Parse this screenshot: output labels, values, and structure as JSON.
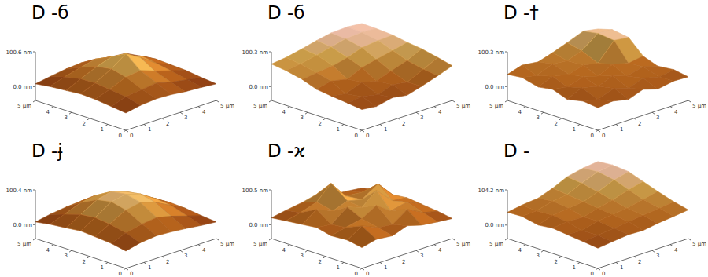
{
  "chart_data": [
    {
      "type": "surface",
      "title": "D -б",
      "x": [
        0,
        0.8,
        1.7,
        2.5,
        3.3,
        4.2,
        5
      ],
      "y": [
        0,
        0.8,
        1.7,
        2.5,
        3.3,
        4.2,
        5
      ],
      "xlim": [
        0,
        5
      ],
      "ylim": [
        0,
        5
      ],
      "zlim": [
        -40,
        100.6
      ],
      "xticks": [
        0,
        1,
        2,
        3,
        4,
        {
          "value": 5,
          "label": "5 µm"
        }
      ],
      "yticks": [
        0,
        1,
        2,
        3,
        4,
        {
          "value": 5,
          "label": "5 µm"
        }
      ],
      "zticks": [
        {
          "value": 0,
          "label": "0.0 nm"
        },
        {
          "value": 100.6,
          "label": "100.6 nm"
        }
      ],
      "z": [
        [
          10,
          18,
          22,
          20,
          15,
          12,
          8
        ],
        [
          15,
          30,
          35,
          40,
          28,
          20,
          12
        ],
        [
          20,
          35,
          55,
          60,
          45,
          30,
          18
        ],
        [
          22,
          40,
          65,
          95,
          70,
          38,
          20
        ],
        [
          18,
          38,
          58,
          72,
          60,
          45,
          22
        ],
        [
          14,
          28,
          40,
          50,
          42,
          30,
          16
        ],
        [
          8,
          15,
          22,
          25,
          20,
          14,
          10
        ]
      ]
    },
    {
      "type": "surface",
      "title": "D -б",
      "x": [
        0,
        0.8,
        1.7,
        2.5,
        3.3,
        4.2,
        5
      ],
      "y": [
        0,
        0.8,
        1.7,
        2.5,
        3.3,
        4.2,
        5
      ],
      "xlim": [
        0,
        5
      ],
      "ylim": [
        0,
        5
      ],
      "zlim": [
        -40,
        100.3
      ],
      "xticks": [
        0,
        1,
        2,
        3,
        4,
        {
          "value": 5,
          "label": "5 µm"
        }
      ],
      "yticks": [
        0,
        1,
        2,
        3,
        4,
        {
          "value": 5,
          "label": "5 µm"
        }
      ],
      "zticks": [
        {
          "value": 0,
          "label": "0.0 nm"
        },
        {
          "value": 100.3,
          "label": "100.3 nm"
        }
      ],
      "z": [
        [
          20,
          15,
          25,
          18,
          30,
          45,
          60
        ],
        [
          25,
          30,
          20,
          35,
          28,
          50,
          70
        ],
        [
          30,
          22,
          40,
          30,
          45,
          60,
          80
        ],
        [
          35,
          45,
          35,
          55,
          65,
          75,
          85
        ],
        [
          50,
          55,
          60,
          70,
          85,
          90,
          92
        ],
        [
          60,
          65,
          75,
          85,
          95,
          98,
          95
        ],
        [
          65,
          70,
          80,
          90,
          98,
          100,
          96
        ]
      ]
    },
    {
      "type": "surface",
      "title": "D -†",
      "x": [
        0,
        0.8,
        1.7,
        2.5,
        3.3,
        4.2,
        5
      ],
      "y": [
        0,
        0.8,
        1.7,
        2.5,
        3.3,
        4.2,
        5
      ],
      "xlim": [
        0,
        5
      ],
      "ylim": [
        0,
        5
      ],
      "zlim": [
        -40,
        100.3
      ],
      "xticks": [
        0,
        1,
        2,
        3,
        4,
        {
          "value": 5,
          "label": "5 µm"
        }
      ],
      "yticks": [
        0,
        1,
        2,
        3,
        4,
        {
          "value": 5,
          "label": "5 µm"
        }
      ],
      "zticks": [
        {
          "value": 0,
          "label": "0.0 nm"
        },
        {
          "value": 100.3,
          "label": "100.3 nm"
        }
      ],
      "z": [
        [
          25,
          30,
          20,
          35,
          22,
          30,
          28
        ],
        [
          30,
          22,
          38,
          25,
          40,
          28,
          35
        ],
        [
          20,
          40,
          28,
          45,
          30,
          42,
          30
        ],
        [
          35,
          28,
          42,
          30,
          50,
          38,
          45
        ],
        [
          28,
          45,
          35,
          48,
          40,
          90,
          85
        ],
        [
          40,
          32,
          50,
          45,
          60,
          95,
          92
        ],
        [
          35,
          48,
          42,
          55,
          70,
          88,
          80
        ]
      ]
    },
    {
      "type": "surface",
      "title": "D -ɉ",
      "x": [
        0,
        0.8,
        1.7,
        2.5,
        3.3,
        4.2,
        5
      ],
      "y": [
        0,
        0.8,
        1.7,
        2.5,
        3.3,
        4.2,
        5
      ],
      "xlim": [
        0,
        5
      ],
      "ylim": [
        0,
        5
      ],
      "zlim": [
        -40,
        100.4
      ],
      "xticks": [
        0,
        1,
        2,
        3,
        4,
        {
          "value": 5,
          "label": "5 µm"
        }
      ],
      "yticks": [
        0,
        1,
        2,
        3,
        4,
        {
          "value": 5,
          "label": "5 µm"
        }
      ],
      "zticks": [
        {
          "value": 0,
          "label": "0.0 nm"
        },
        {
          "value": 100.4,
          "label": "100.4 nm"
        }
      ],
      "z": [
        [
          10,
          20,
          25,
          22,
          18,
          12,
          8
        ],
        [
          18,
          35,
          45,
          50,
          40,
          25,
          12
        ],
        [
          22,
          45,
          70,
          78,
          65,
          40,
          18
        ],
        [
          25,
          50,
          80,
          88,
          75,
          45,
          20
        ],
        [
          20,
          45,
          72,
          82,
          68,
          42,
          18
        ],
        [
          15,
          30,
          48,
          55,
          45,
          28,
          12
        ],
        [
          8,
          16,
          22,
          25,
          20,
          14,
          8
        ]
      ]
    },
    {
      "type": "surface",
      "title": "D -ϰ",
      "x": [
        0,
        0.8,
        1.7,
        2.5,
        3.3,
        4.2,
        5
      ],
      "y": [
        0,
        0.8,
        1.7,
        2.5,
        3.3,
        4.2,
        5
      ],
      "xlim": [
        0,
        5
      ],
      "ylim": [
        0,
        5
      ],
      "zlim": [
        -40,
        100.5
      ],
      "xticks": [
        0,
        1,
        2,
        3,
        4,
        {
          "value": 5,
          "label": "5 µm"
        }
      ],
      "yticks": [
        0,
        1,
        2,
        3,
        4,
        {
          "value": 5,
          "label": "5 µm"
        }
      ],
      "zticks": [
        {
          "value": 0,
          "label": "0.0 nm"
        },
        {
          "value": 100.5,
          "label": "100.5 nm"
        }
      ],
      "z": [
        [
          20,
          30,
          25,
          40,
          28,
          22,
          18
        ],
        [
          28,
          55,
          35,
          30,
          60,
          35,
          25
        ],
        [
          25,
          35,
          45,
          70,
          40,
          50,
          30
        ],
        [
          35,
          30,
          65,
          50,
          85,
          40,
          35
        ],
        [
          30,
          60,
          40,
          55,
          45,
          75,
          30
        ],
        [
          25,
          35,
          50,
          90,
          40,
          35,
          28
        ],
        [
          20,
          28,
          35,
          45,
          30,
          25,
          20
        ]
      ]
    },
    {
      "type": "surface",
      "title": "D -",
      "x": [
        0,
        0.8,
        1.7,
        2.5,
        3.3,
        4.2,
        5
      ],
      "y": [
        0,
        0.8,
        1.7,
        2.5,
        3.3,
        4.2,
        5
      ],
      "xlim": [
        0,
        5
      ],
      "ylim": [
        0,
        5
      ],
      "zlim": [
        -40,
        104.2
      ],
      "xticks": [
        0,
        1,
        2,
        3,
        4,
        {
          "value": 5,
          "label": "5 µm"
        }
      ],
      "yticks": [
        0,
        1,
        2,
        3,
        4,
        {
          "value": 5,
          "label": "5 µm"
        }
      ],
      "zticks": [
        {
          "value": 0,
          "label": "0.0 nm"
        },
        {
          "value": 104.2,
          "label": "104.2 nm"
        }
      ],
      "z": [
        [
          20,
          25,
          30,
          28,
          35,
          40,
          45
        ],
        [
          25,
          30,
          35,
          40,
          45,
          50,
          55
        ],
        [
          30,
          28,
          40,
          45,
          50,
          60,
          70
        ],
        [
          35,
          40,
          38,
          50,
          60,
          75,
          85
        ],
        [
          30,
          45,
          50,
          55,
          70,
          90,
          100
        ],
        [
          40,
          42,
          55,
          60,
          80,
          98,
          104
        ],
        [
          38,
          45,
          50,
          65,
          85,
          95,
          100
        ]
      ]
    }
  ]
}
